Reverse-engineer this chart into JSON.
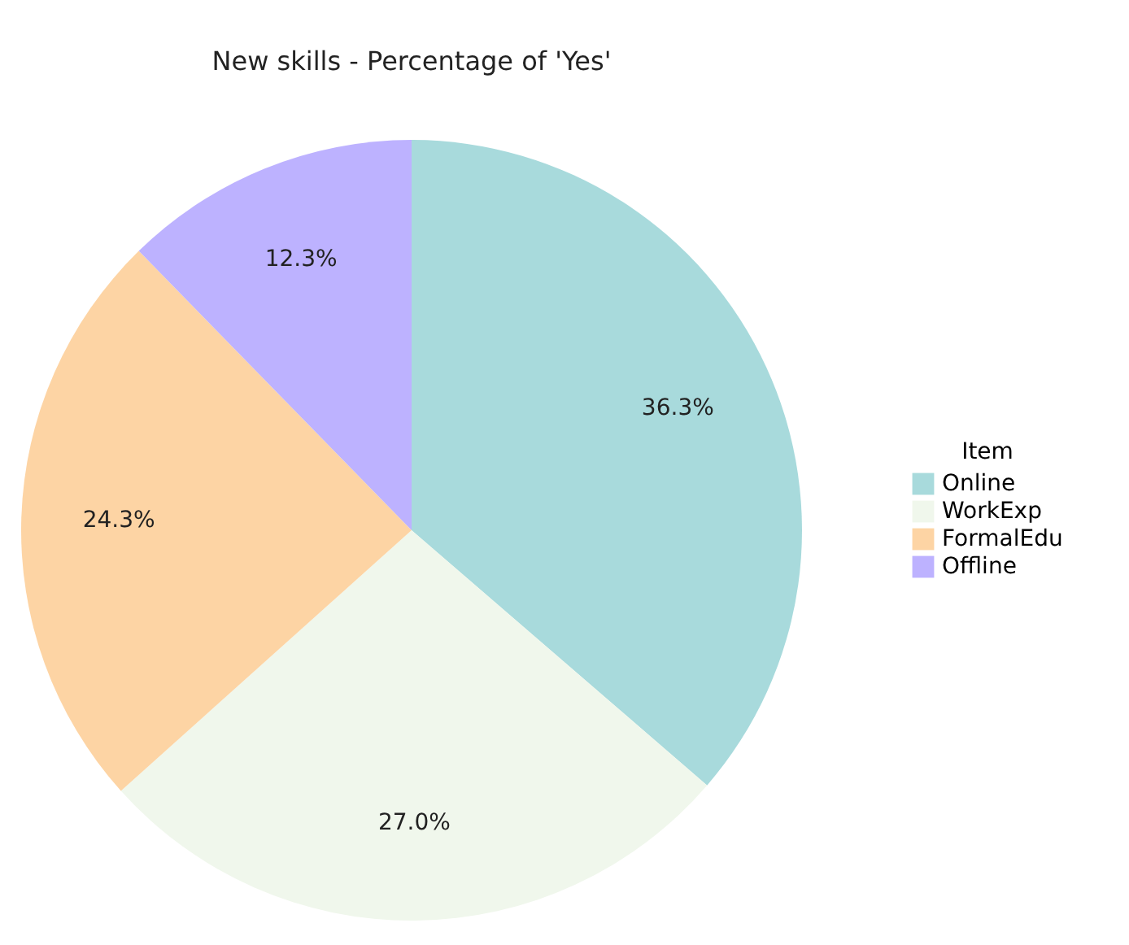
{
  "chart_data": {
    "type": "pie",
    "title": "New skills - Percentage of 'Yes'",
    "legend_title": "Item",
    "legend": "right",
    "categories": [
      "Online",
      "WorkExp",
      "FormalEdu",
      "Offline"
    ],
    "values": [
      36.3,
      27.0,
      24.3,
      12.3
    ],
    "value_labels": [
      "36.3%",
      "27.0%",
      "24.3%",
      "12.3%"
    ],
    "colors": [
      "#a8dadc",
      "#f0f7ec",
      "#fdd4a4",
      "#bdb2ff"
    ]
  }
}
